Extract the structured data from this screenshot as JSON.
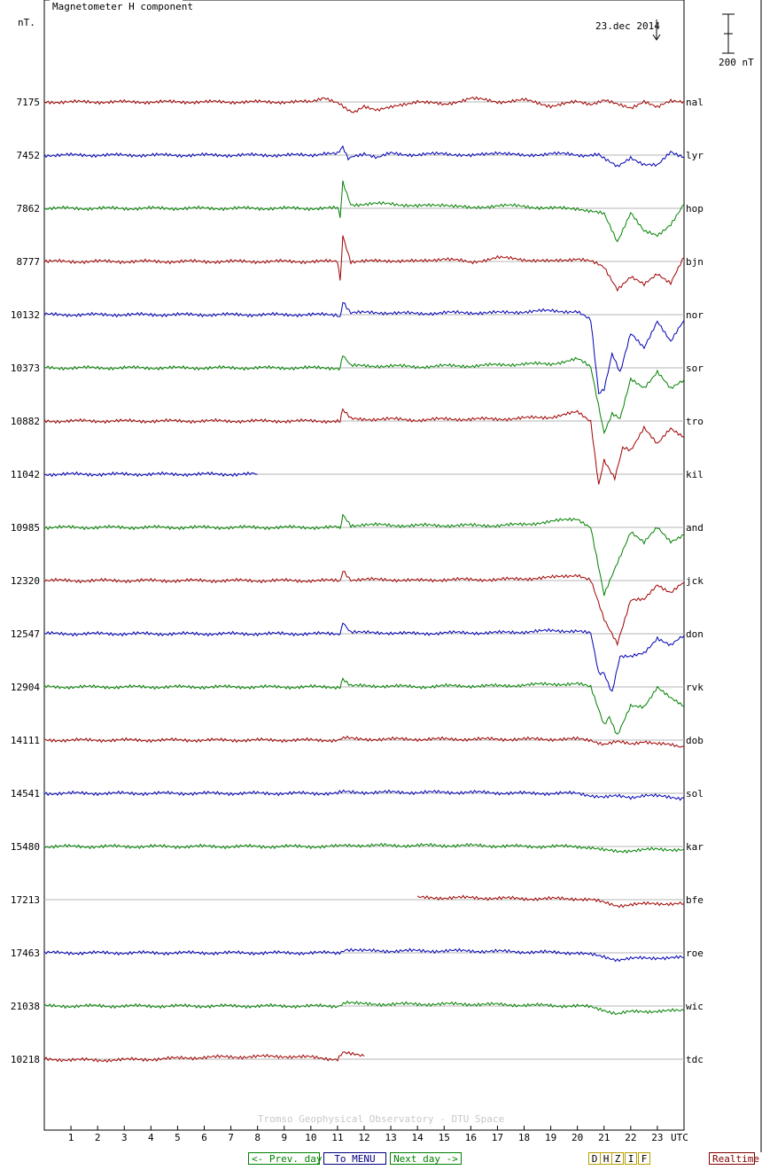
{
  "title": "Magnetometer H component",
  "units_label": "nT.",
  "date_label": "23.dec 2014",
  "scale_label": "200 nT",
  "credit": "Tromso Geophysical Observatory - DTU Space",
  "nav": {
    "prev": "<- Prev. day",
    "menu": "To MENU",
    "next": "Next day ->",
    "realtime": "Realtime"
  },
  "components": [
    "D",
    "H",
    "Z",
    "I",
    "F"
  ],
  "colors": {
    "red": "#a00000",
    "blue": "#0000b4",
    "green": "#008000",
    "grid": "#b4b4b4"
  },
  "chart_data": {
    "type": "line",
    "title": "Magnetometer H component",
    "xlabel": "UTC",
    "ylabel": "nT.",
    "xlim": [
      0,
      24
    ],
    "x_ticks": [
      1,
      2,
      3,
      4,
      5,
      6,
      7,
      8,
      9,
      10,
      11,
      12,
      13,
      14,
      15,
      16,
      17,
      18,
      19,
      20,
      21,
      22,
      23
    ],
    "x_unit": "UTC",
    "scale_bar_nT": 200,
    "grid": "horizontal baselines per station",
    "legend": "station codes at right edge",
    "series": [
      {
        "name": "nal",
        "base": "7175",
        "color": "red",
        "x": [
          0,
          5,
          10,
          10.5,
          11,
          11.3,
          11.6,
          12,
          12.5,
          13,
          14,
          15,
          16,
          17,
          18,
          19,
          20,
          20.5,
          21,
          21.5,
          22,
          22.5,
          23,
          23.5,
          24
        ],
        "y": [
          0,
          0,
          0,
          25,
          -5,
          -35,
          -50,
          -20,
          -40,
          -30,
          5,
          -15,
          20,
          0,
          10,
          -20,
          0,
          -10,
          10,
          -15,
          -30,
          5,
          -30,
          5,
          5
        ]
      },
      {
        "name": "lyr",
        "base": "7452",
        "color": "blue",
        "x": [
          0,
          5,
          10,
          10.5,
          11,
          11.2,
          11.4,
          12,
          12.5,
          13,
          14,
          15,
          16,
          17,
          18,
          19,
          20,
          20.8,
          21,
          21.5,
          22,
          22.5,
          23,
          23.5,
          24
        ],
        "y": [
          0,
          0,
          0,
          10,
          5,
          40,
          -20,
          10,
          -15,
          10,
          0,
          10,
          -5,
          15,
          -5,
          10,
          0,
          0,
          -20,
          -60,
          -10,
          -50,
          -55,
          20,
          -10
        ]
      },
      {
        "name": "hop",
        "base": "7862",
        "color": "green",
        "x": [
          0,
          5,
          10,
          11,
          11.1,
          11.2,
          11.5,
          12,
          13,
          14,
          15,
          16,
          17,
          18,
          19,
          20,
          21,
          21.5,
          22,
          22.5,
          23,
          23.5,
          24
        ],
        "y": [
          0,
          0,
          0,
          0,
          -40,
          130,
          20,
          20,
          25,
          10,
          20,
          0,
          15,
          10,
          0,
          0,
          -30,
          -170,
          -20,
          -120,
          -140,
          -80,
          20
        ]
      },
      {
        "name": "bjn",
        "base": "8777",
        "color": "red",
        "x": [
          0,
          5,
          10,
          11,
          11.1,
          11.2,
          11.5,
          12,
          13,
          14,
          15,
          16,
          17,
          18,
          19,
          20,
          20.5,
          21,
          21.5,
          22,
          22.5,
          23,
          23.5,
          24
        ],
        "y": [
          0,
          0,
          0,
          0,
          -100,
          130,
          0,
          0,
          5,
          0,
          15,
          -5,
          20,
          10,
          0,
          15,
          0,
          -30,
          -140,
          -80,
          -120,
          -60,
          -110,
          20
        ]
      },
      {
        "name": "nor",
        "base": "10132",
        "color": "blue",
        "x": [
          0,
          5,
          10,
          11,
          11.1,
          11.2,
          11.5,
          12,
          13,
          14,
          15,
          16,
          17,
          18,
          19,
          20,
          20.5,
          20.8,
          21,
          21.3,
          21.6,
          22,
          22.5,
          23,
          23.5,
          24
        ],
        "y": [
          0,
          0,
          0,
          0,
          -20,
          70,
          10,
          10,
          10,
          5,
          10,
          10,
          10,
          15,
          20,
          15,
          -30,
          -400,
          -380,
          -200,
          -300,
          -100,
          -170,
          -30,
          -140,
          -30
        ]
      },
      {
        "name": "sor",
        "base": "10373",
        "color": "green",
        "x": [
          0,
          5,
          10,
          11,
          11.1,
          11.2,
          11.5,
          12,
          13,
          14,
          15,
          16,
          17,
          18,
          19,
          20,
          20.5,
          21,
          21.3,
          21.6,
          22,
          22.5,
          23,
          23.5,
          24
        ],
        "y": [
          0,
          0,
          0,
          0,
          -5,
          70,
          10,
          10,
          10,
          5,
          10,
          10,
          15,
          20,
          20,
          45,
          5,
          -330,
          -240,
          -260,
          -60,
          -100,
          -20,
          -110,
          -60
        ]
      },
      {
        "name": "tro",
        "base": "10882",
        "color": "red",
        "x": [
          0,
          5,
          10,
          11,
          11.1,
          11.2,
          11.5,
          12,
          13,
          14,
          15,
          16,
          17,
          18,
          19,
          20,
          20.5,
          20.8,
          21,
          21.4,
          21.7,
          22,
          22.5,
          23,
          23.5,
          24
        ],
        "y": [
          0,
          0,
          0,
          0,
          0,
          60,
          10,
          10,
          10,
          5,
          10,
          10,
          10,
          15,
          20,
          45,
          0,
          -330,
          -200,
          -290,
          -140,
          -150,
          -30,
          -120,
          -40,
          -80
        ]
      },
      {
        "name": "kil",
        "base": "11042",
        "color": "blue",
        "x": [
          0,
          2,
          4,
          6,
          8
        ],
        "y": [
          0,
          0,
          0,
          0,
          0
        ]
      },
      {
        "name": "and",
        "base": "10985",
        "color": "green",
        "x": [
          0,
          5,
          10,
          11,
          11.1,
          11.2,
          11.5,
          12,
          13,
          14,
          15,
          16,
          17,
          18,
          19,
          20,
          20.5,
          21,
          21.5,
          22,
          22.5,
          23,
          23.5,
          24
        ],
        "y": [
          0,
          0,
          0,
          0,
          -5,
          60,
          10,
          15,
          10,
          10,
          10,
          10,
          10,
          15,
          30,
          45,
          0,
          -350,
          -180,
          -20,
          -80,
          0,
          -70,
          -40
        ]
      },
      {
        "name": "jck",
        "base": "12320",
        "color": "red",
        "x": [
          0,
          5,
          10,
          11,
          11.1,
          11.2,
          11.5,
          12,
          13,
          14,
          15,
          16,
          17,
          18,
          19,
          20,
          20.5,
          21,
          21.5,
          22,
          22.5,
          23,
          23.5,
          24
        ],
        "y": [
          0,
          0,
          0,
          0,
          -5,
          50,
          5,
          5,
          5,
          0,
          5,
          5,
          5,
          10,
          15,
          30,
          0,
          -200,
          -320,
          -100,
          -100,
          -20,
          -60,
          -10
        ]
      },
      {
        "name": "don",
        "base": "12547",
        "color": "blue",
        "x": [
          0,
          5,
          10,
          11,
          11.1,
          11.2,
          11.5,
          12,
          13,
          14,
          15,
          16,
          17,
          18,
          19,
          20,
          20.5,
          20.8,
          21,
          21.3,
          21.6,
          22,
          22.5,
          23,
          23.5,
          24
        ],
        "y": [
          0,
          0,
          0,
          0,
          -5,
          60,
          10,
          5,
          5,
          0,
          5,
          5,
          5,
          10,
          15,
          15,
          0,
          -200,
          -200,
          -300,
          -120,
          -120,
          -100,
          -20,
          -60,
          -10
        ]
      },
      {
        "name": "rvk",
        "base": "12904",
        "color": "green",
        "x": [
          0,
          5,
          10,
          11,
          11.1,
          11.2,
          11.5,
          12,
          13,
          14,
          15,
          16,
          17,
          18,
          19,
          20,
          20.5,
          21,
          21.2,
          21.5,
          22,
          22.5,
          23,
          23.5,
          24
        ],
        "y": [
          0,
          0,
          0,
          0,
          -5,
          45,
          5,
          5,
          5,
          0,
          5,
          5,
          5,
          10,
          15,
          15,
          0,
          -190,
          -150,
          -250,
          -100,
          -100,
          0,
          -60,
          -100
        ]
      },
      {
        "name": "dob",
        "base": "14111",
        "color": "red",
        "x": [
          0,
          5,
          10,
          11,
          11.3,
          12,
          14,
          16,
          18,
          20,
          20.5,
          21,
          21.5,
          22,
          22.5,
          23,
          23.5,
          24
        ],
        "y": [
          0,
          0,
          0,
          0,
          10,
          5,
          5,
          5,
          5,
          5,
          0,
          -20,
          -10,
          -20,
          -5,
          -20,
          -25,
          -35
        ]
      },
      {
        "name": "sol",
        "base": "14541",
        "color": "blue",
        "x": [
          0,
          5,
          10,
          11,
          11.3,
          12,
          14,
          16,
          18,
          20,
          20.5,
          21,
          21.5,
          22,
          22.5,
          23,
          23.5,
          24
        ],
        "y": [
          0,
          0,
          0,
          0,
          10,
          5,
          5,
          5,
          0,
          0,
          -10,
          -20,
          -15,
          -20,
          -10,
          -15,
          -20,
          -25
        ]
      },
      {
        "name": "kar",
        "base": "15480",
        "color": "green",
        "x": [
          0,
          5,
          10,
          11,
          11.3,
          12,
          14,
          16,
          18,
          20,
          20.5,
          21,
          21.5,
          22,
          23,
          24
        ],
        "y": [
          0,
          0,
          0,
          0,
          10,
          5,
          5,
          5,
          0,
          0,
          -5,
          -20,
          -25,
          -20,
          -15,
          -15
        ]
      },
      {
        "name": "bfe",
        "base": "17213",
        "color": "red",
        "x": [
          14,
          16,
          18,
          20,
          20.5,
          21,
          21.5,
          22,
          23,
          24
        ],
        "y": [
          10,
          10,
          5,
          5,
          0,
          -15,
          -30,
          -25,
          -20,
          -20
        ]
      },
      {
        "name": "roe",
        "base": "17463",
        "color": "blue",
        "x": [
          0,
          5,
          10,
          11,
          11.3,
          12,
          14,
          16,
          18,
          20,
          20.5,
          21,
          21.5,
          22,
          23,
          24
        ],
        "y": [
          0,
          0,
          0,
          0,
          15,
          10,
          10,
          10,
          5,
          0,
          -10,
          -20,
          -35,
          -30,
          -25,
          -25
        ]
      },
      {
        "name": "wic",
        "base": "21038",
        "color": "green",
        "x": [
          0,
          5,
          10,
          11,
          11.3,
          12,
          14,
          16,
          18,
          20,
          20.5,
          21,
          21.5,
          22,
          23,
          24
        ],
        "y": [
          0,
          0,
          0,
          0,
          15,
          10,
          10,
          10,
          5,
          0,
          -5,
          -20,
          -40,
          -30,
          -25,
          -25
        ]
      },
      {
        "name": "tdc",
        "base": "10218",
        "color": "red",
        "x": [
          0,
          2,
          4,
          6,
          9,
          10,
          11,
          11.2,
          11.5,
          12
        ],
        "y": [
          0,
          -5,
          0,
          10,
          15,
          10,
          0,
          40,
          25,
          15
        ]
      }
    ]
  }
}
